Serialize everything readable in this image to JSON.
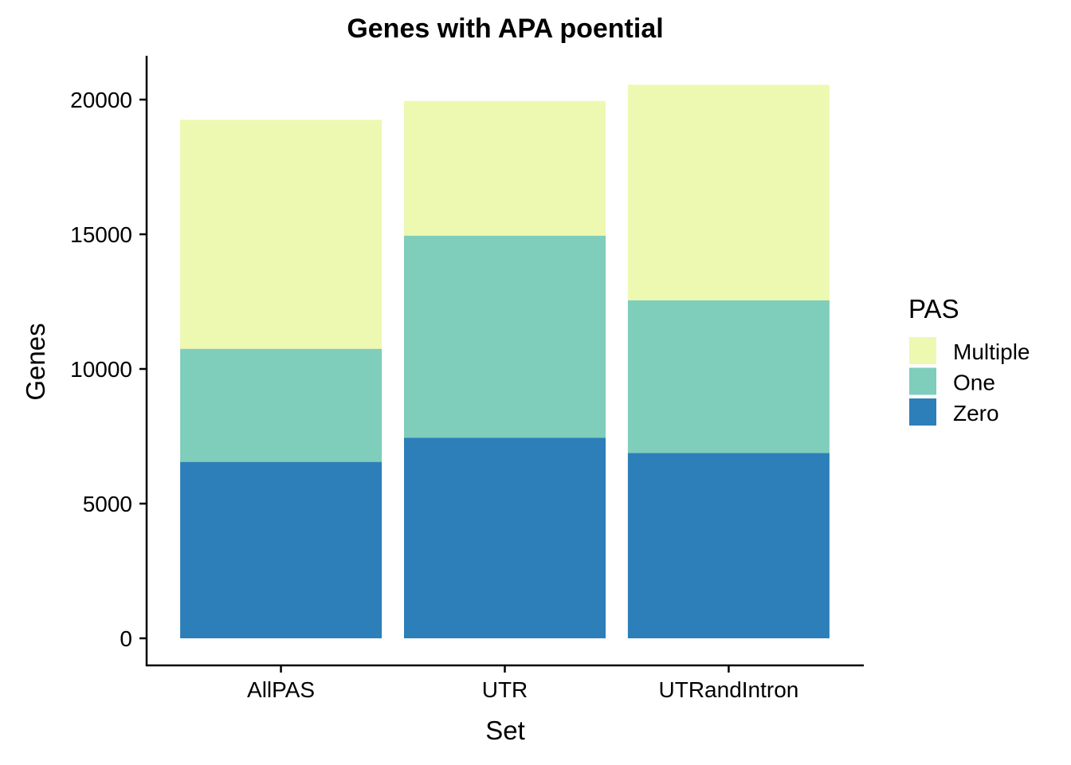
{
  "chart_data": {
    "type": "bar",
    "stacked": true,
    "title": "Genes with APA poential",
    "xlabel": "Set",
    "ylabel": "Genes",
    "categories": [
      "AllPAS",
      "UTR",
      "UTRandIntron"
    ],
    "series": [
      {
        "name": "Zero",
        "color": "#2c7fb8",
        "values": [
          6550,
          7450,
          6880
        ]
      },
      {
        "name": "One",
        "color": "#7fcdbb",
        "values": [
          4200,
          7500,
          5670
        ]
      },
      {
        "name": "Multiple",
        "color": "#edf8b1",
        "values": [
          8500,
          5000,
          8000
        ]
      }
    ],
    "ylim": [
      -1000,
      21600
    ],
    "yticks": [
      0,
      5000,
      10000,
      15000,
      20000
    ],
    "ytick_labels": [
      "0",
      "5000",
      "10000",
      "15000",
      "20000"
    ],
    "legend": {
      "title": "PAS",
      "position": "right",
      "items": [
        "Multiple",
        "One",
        "Zero"
      ]
    },
    "grid": false
  }
}
